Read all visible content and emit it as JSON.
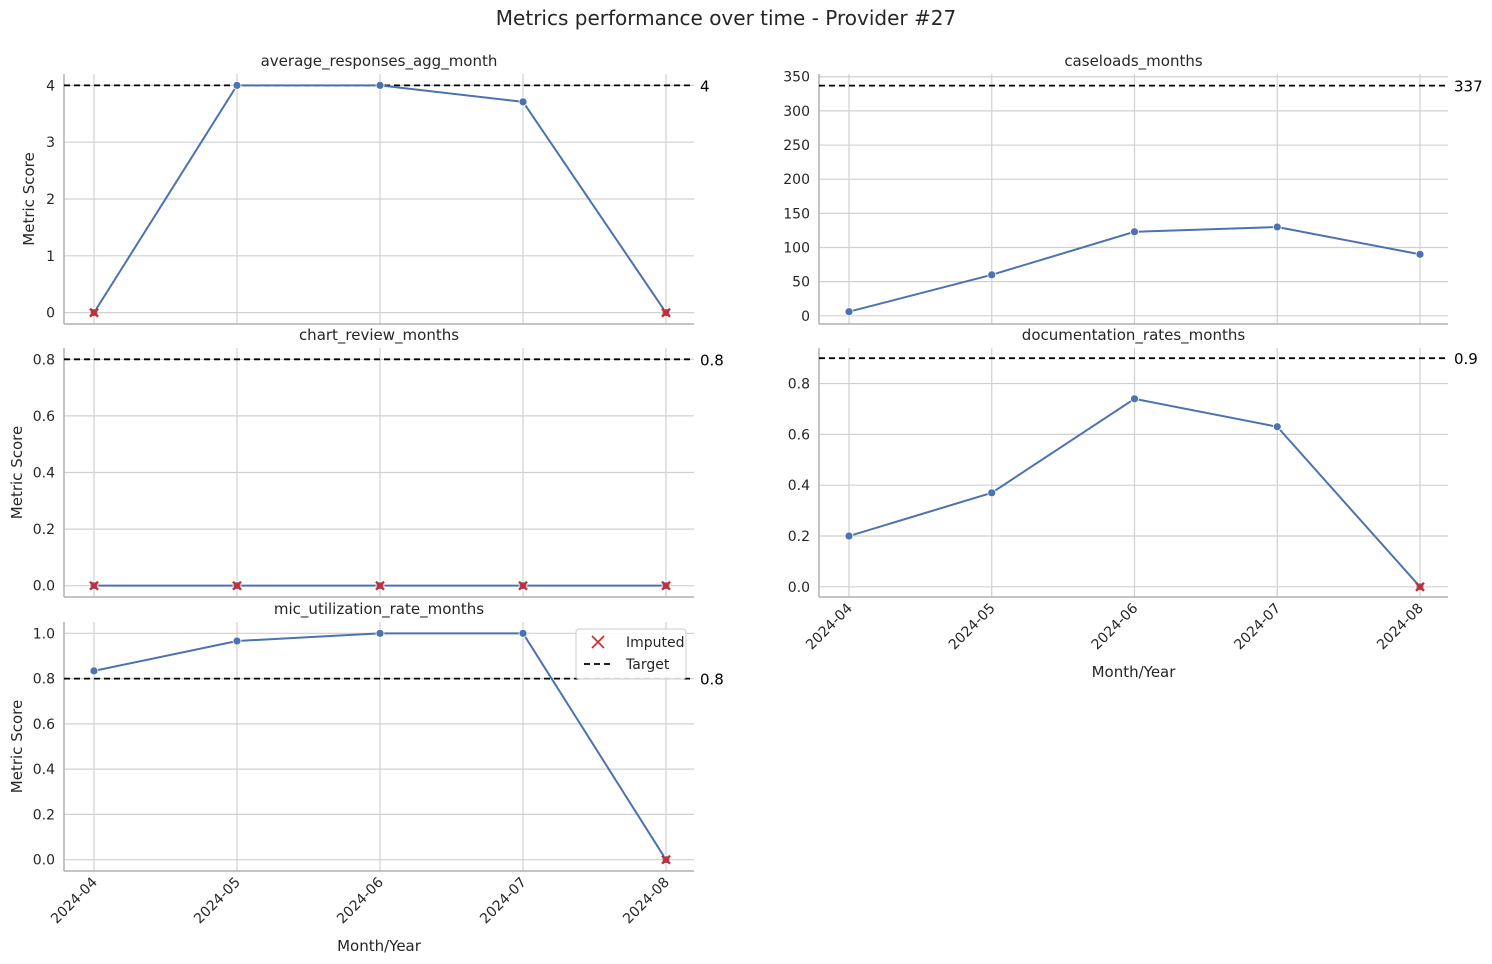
{
  "suptitle": "Metrics performance over time - Provider #27",
  "colors": {
    "line": "#4c72b0",
    "imputed": "#d62728",
    "target": "#000000",
    "grid": "#d0d0d0",
    "axis": "#b0b0b0",
    "text": "#262626"
  },
  "legend": {
    "imputed_label": "Imputed",
    "target_label": "Target",
    "placement": "upper-right of mic_utilization_rate_months panel"
  },
  "chart_data": [
    {
      "type": "line",
      "title": "average_responses_agg_month",
      "xlabel": "",
      "ylabel": "Metric Score",
      "x": [
        "2024-04",
        "2024-05",
        "2024-06",
        "2024-07",
        "2024-08"
      ],
      "values": [
        0,
        4.0,
        4.0,
        3.71,
        0
      ],
      "imputed": [
        true,
        false,
        false,
        false,
        true
      ],
      "target": 4,
      "target_label": "4",
      "ylim": [
        -0.2,
        4.2
      ],
      "yticks": [
        0,
        1,
        2,
        3,
        4
      ],
      "ytick_labels": [
        "0",
        "1",
        "2",
        "3",
        "4"
      ],
      "show_xticklabels": false,
      "grid": true
    },
    {
      "type": "line",
      "title": "caseloads_months",
      "xlabel": "",
      "ylabel": "",
      "x": [
        "2024-04",
        "2024-05",
        "2024-06",
        "2024-07",
        "2024-08"
      ],
      "values": [
        6,
        60,
        123,
        130,
        90
      ],
      "imputed": [
        false,
        false,
        false,
        false,
        false
      ],
      "target": 337,
      "target_label": "337",
      "ylim": [
        -12,
        354
      ],
      "yticks": [
        0,
        50,
        100,
        150,
        200,
        250,
        300,
        350
      ],
      "ytick_labels": [
        "0",
        "50",
        "100",
        "150",
        "200",
        "250",
        "300",
        "350"
      ],
      "show_xticklabels": false,
      "grid": true
    },
    {
      "type": "line",
      "title": "chart_review_months",
      "xlabel": "",
      "ylabel": "Metric Score",
      "x": [
        "2024-04",
        "2024-05",
        "2024-06",
        "2024-07",
        "2024-08"
      ],
      "values": [
        0,
        0,
        0,
        0,
        0
      ],
      "imputed": [
        true,
        true,
        true,
        true,
        true
      ],
      "target": 0.8,
      "target_label": "0.8",
      "ylim": [
        -0.04,
        0.84
      ],
      "yticks": [
        0.0,
        0.2,
        0.4,
        0.6,
        0.8
      ],
      "ytick_labels": [
        "0.0",
        "0.2",
        "0.4",
        "0.6",
        "0.8"
      ],
      "show_xticklabels": false,
      "grid": true
    },
    {
      "type": "line",
      "title": "documentation_rates_months",
      "xlabel": "Month/Year",
      "ylabel": "",
      "x": [
        "2024-04",
        "2024-05",
        "2024-06",
        "2024-07",
        "2024-08"
      ],
      "values": [
        0.2,
        0.37,
        0.74,
        0.63,
        0
      ],
      "imputed": [
        false,
        false,
        false,
        false,
        true
      ],
      "target": 0.9,
      "target_label": "0.9",
      "ylim": [
        -0.04,
        0.94
      ],
      "yticks": [
        0.0,
        0.2,
        0.4,
        0.6,
        0.8
      ],
      "ytick_labels": [
        "0.0",
        "0.2",
        "0.4",
        "0.6",
        "0.8"
      ],
      "show_xticklabels": true,
      "grid": true
    },
    {
      "type": "line",
      "title": "mic_utilization_rate_months",
      "xlabel": "Month/Year",
      "ylabel": "Metric Score",
      "x": [
        "2024-04",
        "2024-05",
        "2024-06",
        "2024-07",
        "2024-08"
      ],
      "values": [
        0.834,
        0.966,
        1.0,
        1.0,
        0
      ],
      "imputed": [
        false,
        false,
        false,
        false,
        true
      ],
      "target": 0.8,
      "target_label": "0.8",
      "ylim": [
        -0.05,
        1.05
      ],
      "yticks": [
        0.0,
        0.2,
        0.4,
        0.6,
        0.8,
        1.0
      ],
      "ytick_labels": [
        "0.0",
        "0.2",
        "0.4",
        "0.6",
        "0.8",
        "1.0"
      ],
      "show_xticklabels": true,
      "grid": true,
      "legend": true
    }
  ]
}
